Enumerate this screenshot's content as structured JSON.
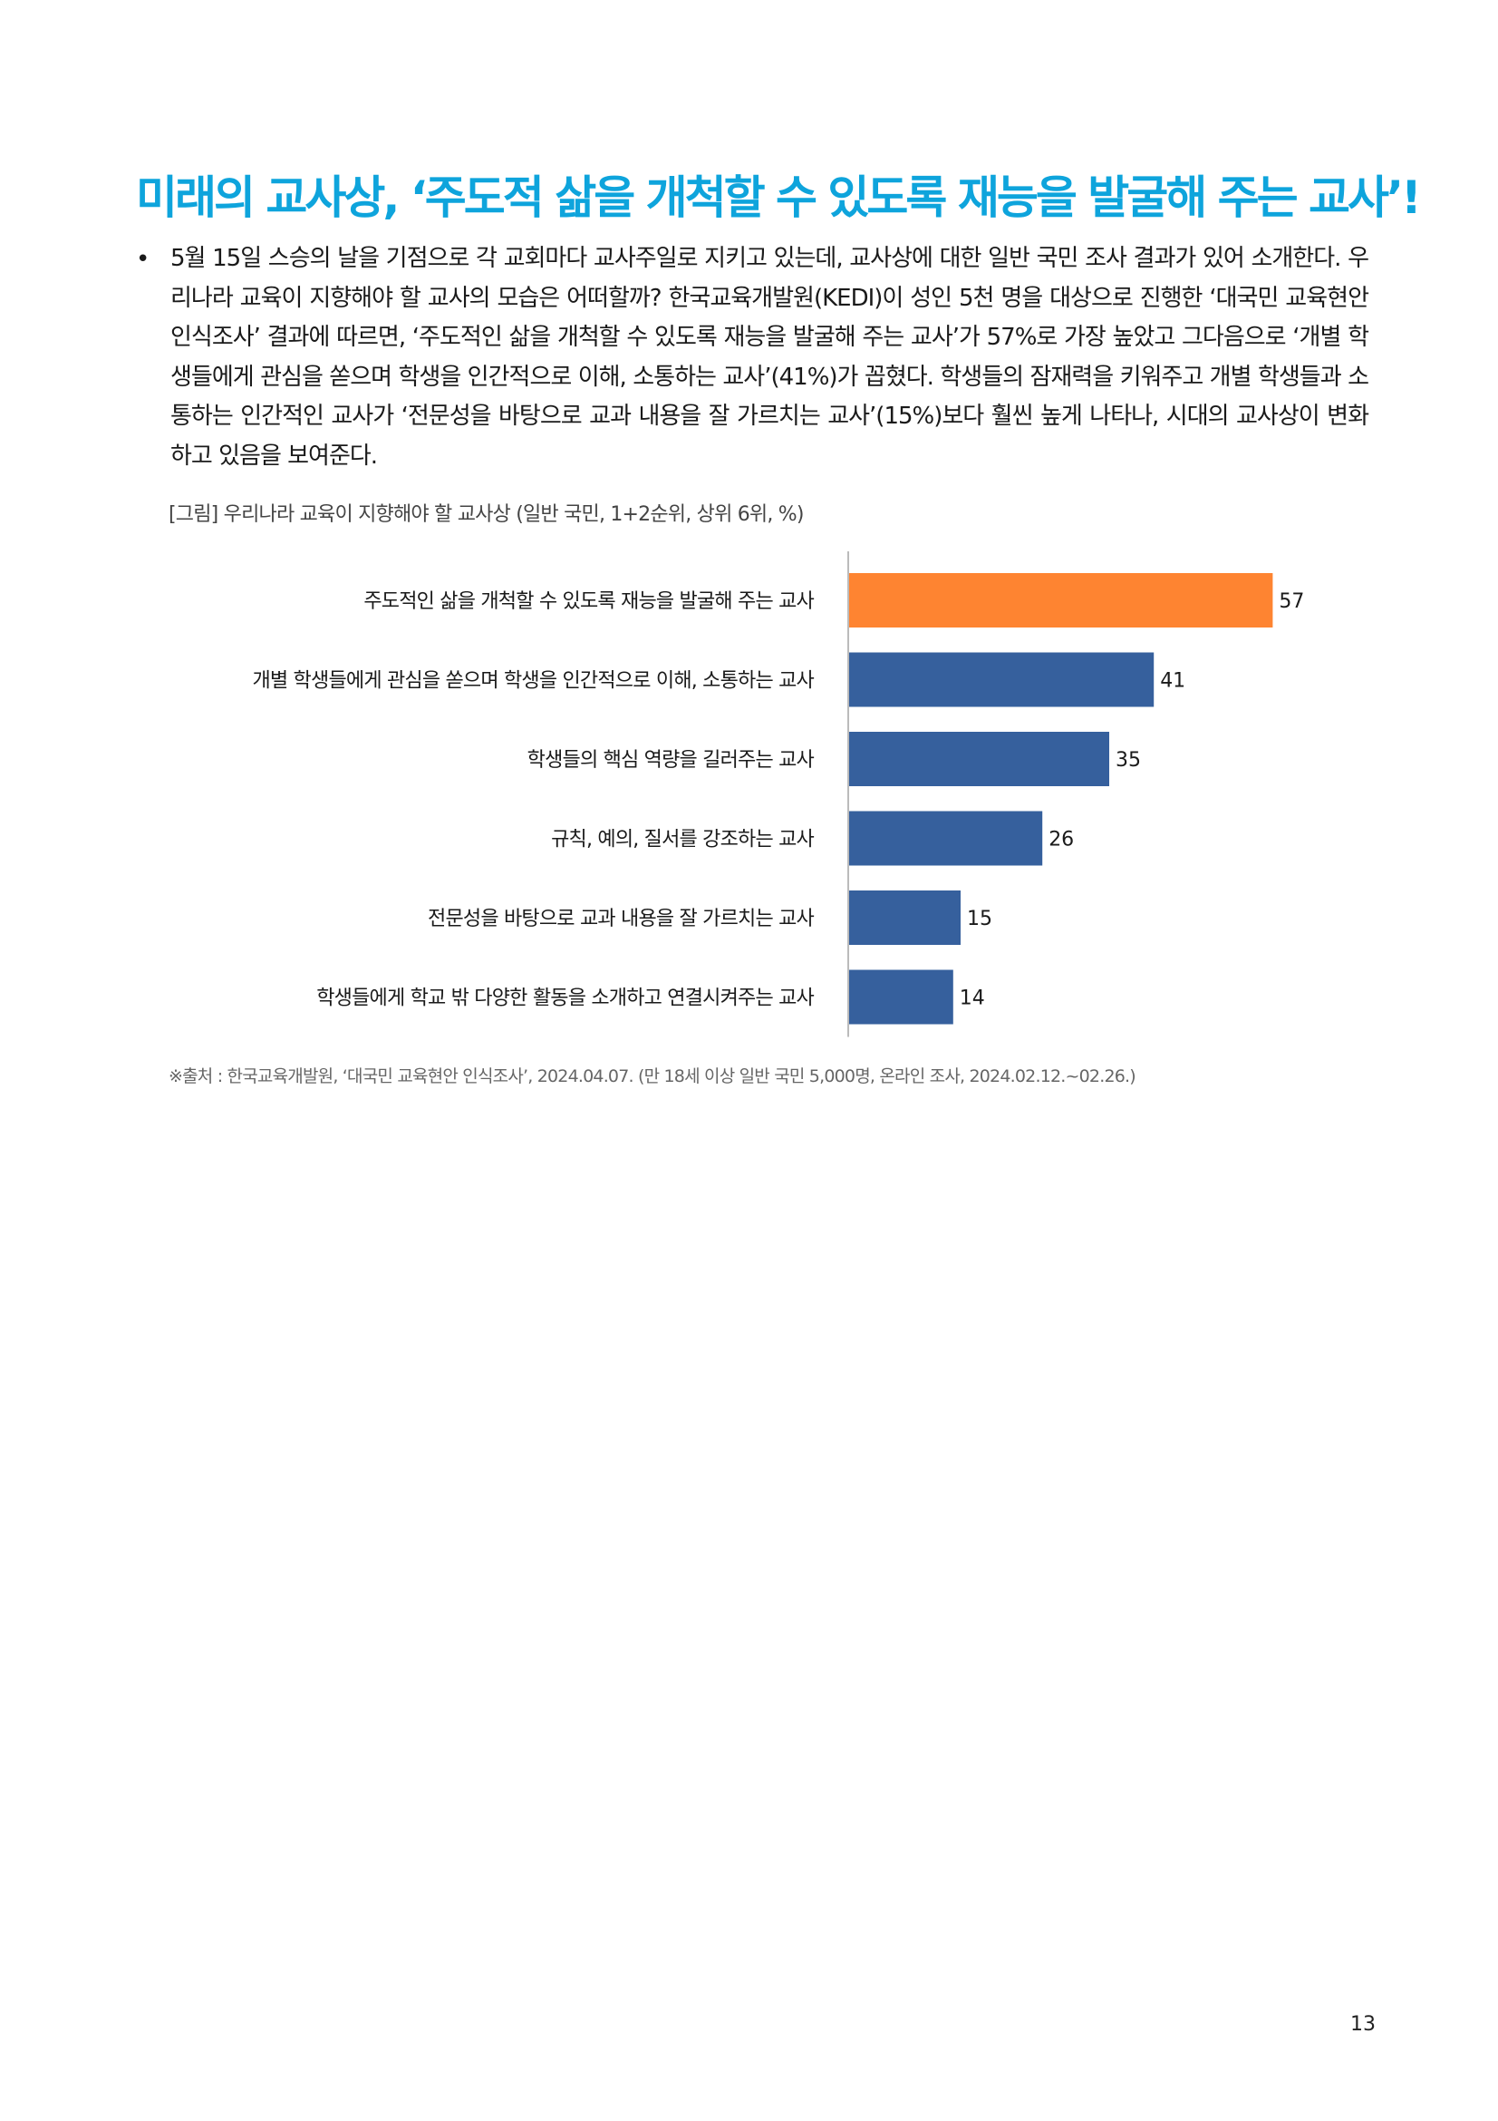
{
  "title": "미래의 교사상, ‘주도적 삶을 개척할 수 있도록 재능을 발굴해 주는 교사’!",
  "intro": {
    "bullet": "•",
    "text": "5월 15일 스승의 날을 기점으로 각 교회마다 교사주일로 지키고 있는데, 교사상에 대한 일반 국민 조사 결과가 있어 소개한다. 우리나라 교육이 지향해야 할 교사의 모습은 어떠할까? 한국교육개발원(KEDI)이 성인 5천 명을 대상으로 진행한 ‘대국민 교육현안 인식조사’ 결과에 따르면, ‘주도적인 삶을 개척할 수 있도록 재능을 발굴해 주는 교사’가 57%로 가장 높았고 그다음으로 ‘개별 학생들에게 관심을 쏟으며 학생을 인간적으로 이해, 소통하는 교사’(41%)가 꼽혔다. 학생들의 잠재력을 키워주고 개별 학생들과 소통하는 인간적인 교사가 ‘전문성을 바탕으로 교과 내용을 잘 가르치는 교사’(15%)보다 훨씬 높게 나타나, 시대의 교사상이 변화하고 있음을 보여준다."
  },
  "figure": {
    "caption": "[그림] 우리나라 교육이 지향해야 할 교사상 (일반 국민, 1+2순위, 상위 6위, %)",
    "source": "※출처 : 한국교육개발원, ‘대국민 교육현안 인식조사’, 2024.04.07. (만 18세 이상 일반 국민 5,000명, 온라인 조사, 2024.02.12.~02.26.)"
  },
  "chart_data": {
    "type": "bar",
    "orientation": "horizontal",
    "categories": [
      "주도적인 삶을 개척할 수 있도록 재능을 발굴해 주는 교사",
      "개별 학생들에게 관심을 쏟으며 학생을 인간적으로 이해, 소통하는 교사",
      "학생들의 핵심 역량을 길러주는 교사",
      "규칙, 예의, 질서를 강조하는 교사",
      "전문성을 바탕으로 교과 내용을 잘 가르치는 교사",
      "학생들에게 학교 밖 다양한 활동을 소개하고 연결시켜주는 교사"
    ],
    "values": [
      57,
      41,
      35,
      26,
      15,
      14
    ],
    "data_labels": [
      "57",
      "41",
      "35",
      "26",
      "15",
      "14"
    ],
    "colors": [
      "#fe8431",
      "#36609d",
      "#36609d",
      "#36609d",
      "#36609d",
      "#36609d"
    ],
    "axis_color": "#bbbbbb",
    "xlim": [
      0,
      60
    ],
    "grid": false,
    "legend": "none"
  },
  "page_number": "13"
}
